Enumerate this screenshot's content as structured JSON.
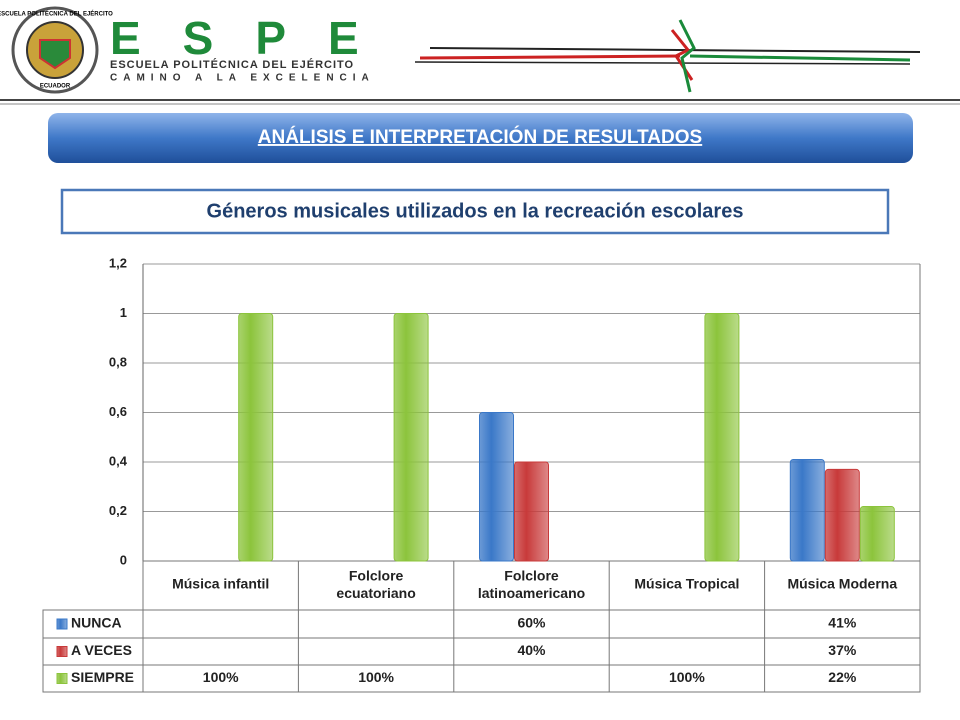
{
  "header": {
    "logo_ring": "ESCUELA POLITÉCNICA DEL EJÉRCITO",
    "logo_country": "ECUADOR",
    "brand": "ESPE",
    "brand_sub": "ESCUELA POLITÉCNICA DEL EJÉRCITO",
    "motto": "CAMINO A LA EXCELENCIA"
  },
  "banner": "ANÁLISIS E INTERPRETACIÓN  DE RESULTADOS",
  "chart_data": {
    "type": "bar",
    "title": "Géneros musicales utilizados en la  recreación escolares",
    "categories": [
      "Música infantil",
      "Folclore ecuatoriano",
      "Folclore latinoamericano",
      "Música Tropical",
      "Música Moderna"
    ],
    "series": [
      {
        "name": "NUNCA",
        "color": "#3a78c8",
        "values": [
          null,
          null,
          0.6,
          null,
          0.41
        ],
        "value_labels": [
          null,
          null,
          "60%",
          null,
          "41%"
        ]
      },
      {
        "name": "A VECES",
        "color": "#c83a3a",
        "values": [
          null,
          null,
          0.4,
          null,
          0.37
        ],
        "value_labels": [
          null,
          null,
          "40%",
          null,
          "37%"
        ]
      },
      {
        "name": "SIEMPRE",
        "color": "#8cc43c",
        "values": [
          1,
          1,
          null,
          1,
          0.22
        ],
        "value_labels": [
          "100%",
          "100%",
          null,
          "100%",
          "22%"
        ]
      }
    ],
    "ylim": [
      0,
      1.2
    ],
    "yticks": [
      0,
      {
        "value": 0.2,
        "label": "0,2"
      },
      {
        "value": 0.4,
        "label": "0,4"
      },
      {
        "value": 0.6,
        "label": "0,6"
      },
      {
        "value": 0.8,
        "label": "0,8"
      },
      1,
      {
        "value": 1.2,
        "label": "1,2"
      }
    ],
    "grid": true
  }
}
